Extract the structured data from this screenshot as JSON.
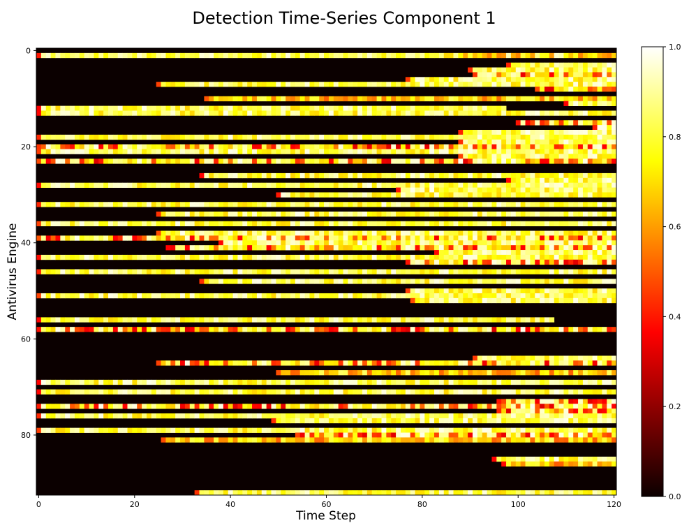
{
  "chart_data": {
    "type": "heatmap",
    "title": "Detection Time-Series Component 1",
    "xlabel": "Time Step",
    "ylabel": "Antivirus Engine",
    "x_range": [
      0,
      120
    ],
    "y_range": [
      0,
      92
    ],
    "y_inverted": true,
    "x_ticks": [
      0,
      20,
      40,
      60,
      80,
      100,
      120
    ],
    "y_ticks": [
      0,
      20,
      40,
      60,
      80
    ],
    "colormap": "hot",
    "colorbar": {
      "range": [
        0,
        1
      ],
      "ticks": [
        "0.0",
        "0.2",
        "0.4",
        "0.6",
        "0.8",
        "1.0"
      ]
    },
    "n_engines": 93,
    "n_steps": 121,
    "rows": [
      {
        "engine": 1,
        "start": 0,
        "end": 120,
        "mode": "bright-to-mid"
      },
      {
        "engine": 3,
        "start": 98,
        "end": 120,
        "mode": "bright"
      },
      {
        "engine": 4,
        "start": 90,
        "end": 120,
        "mode": "bright"
      },
      {
        "engine": 5,
        "start": 91,
        "end": 120,
        "mode": "mixed"
      },
      {
        "engine": 6,
        "start": 77,
        "end": 120,
        "mode": "bright"
      },
      {
        "engine": 7,
        "start": 25,
        "end": 120,
        "mode": "bright"
      },
      {
        "engine": 8,
        "start": 104,
        "end": 120,
        "mode": "mixed"
      },
      {
        "engine": 10,
        "start": 35,
        "end": 120,
        "mode": "mid"
      },
      {
        "engine": 11,
        "start": 110,
        "end": 120,
        "mode": "bright"
      },
      {
        "engine": 12,
        "start": 0,
        "end": 97,
        "mode": "bright"
      },
      {
        "engine": 13,
        "start": 0,
        "end": 120,
        "mode": "bright"
      },
      {
        "engine": 15,
        "start": 100,
        "end": 120,
        "mode": "mixed"
      },
      {
        "engine": 16,
        "start": 116,
        "end": 120,
        "mode": "bright"
      },
      {
        "engine": 17,
        "start": 88,
        "end": 120,
        "mode": "bright"
      },
      {
        "engine": 18,
        "start": 0,
        "end": 120,
        "mode": "bright"
      },
      {
        "engine": 19,
        "start": 88,
        "end": 120,
        "mode": "bright"
      },
      {
        "engine": 20,
        "start": 0,
        "end": 120,
        "mode": "mixed"
      },
      {
        "engine": 21,
        "start": 0,
        "end": 120,
        "mode": "bright"
      },
      {
        "engine": 22,
        "start": 88,
        "end": 120,
        "mode": "bright"
      },
      {
        "engine": 23,
        "start": 0,
        "end": 120,
        "mode": "mixed"
      },
      {
        "engine": 26,
        "start": 34,
        "end": 120,
        "mode": "bright"
      },
      {
        "engine": 27,
        "start": 98,
        "end": 120,
        "mode": "bright"
      },
      {
        "engine": 28,
        "start": 0,
        "end": 120,
        "mode": "bright"
      },
      {
        "engine": 29,
        "start": 75,
        "end": 120,
        "mode": "bright"
      },
      {
        "engine": 30,
        "start": 50,
        "end": 120,
        "mode": "bright"
      },
      {
        "engine": 32,
        "start": 0,
        "end": 120,
        "mode": "bright"
      },
      {
        "engine": 34,
        "start": 25,
        "end": 120,
        "mode": "bright"
      },
      {
        "engine": 36,
        "start": 0,
        "end": 120,
        "mode": "bright"
      },
      {
        "engine": 38,
        "start": 25,
        "end": 120,
        "mode": "bright"
      },
      {
        "engine": 39,
        "start": 0,
        "end": 120,
        "mode": "mixed"
      },
      {
        "engine": 40,
        "start": 38,
        "end": 120,
        "mode": "bright"
      },
      {
        "engine": 41,
        "start": 27,
        "end": 120,
        "mode": "mixed"
      },
      {
        "engine": 42,
        "start": 83,
        "end": 120,
        "mode": "bright"
      },
      {
        "engine": 43,
        "start": 0,
        "end": 120,
        "mode": "bright"
      },
      {
        "engine": 44,
        "start": 77,
        "end": 120,
        "mode": "mixed"
      },
      {
        "engine": 46,
        "start": 0,
        "end": 120,
        "mode": "bright"
      },
      {
        "engine": 48,
        "start": 34,
        "end": 120,
        "mode": "bright"
      },
      {
        "engine": 50,
        "start": 77,
        "end": 120,
        "mode": "bright"
      },
      {
        "engine": 51,
        "start": 0,
        "end": 120,
        "mode": "bright"
      },
      {
        "engine": 52,
        "start": 78,
        "end": 120,
        "mode": "bright"
      },
      {
        "engine": 56,
        "start": 0,
        "end": 107,
        "mode": "bright"
      },
      {
        "engine": 58,
        "start": 0,
        "end": 120,
        "mode": "mixed"
      },
      {
        "engine": 64,
        "start": 91,
        "end": 120,
        "mode": "bright"
      },
      {
        "engine": 65,
        "start": 25,
        "end": 120,
        "mode": "mixed"
      },
      {
        "engine": 67,
        "start": 50,
        "end": 120,
        "mode": "mid"
      },
      {
        "engine": 69,
        "start": 0,
        "end": 120,
        "mode": "bright"
      },
      {
        "engine": 71,
        "start": 0,
        "end": 120,
        "mode": "bright"
      },
      {
        "engine": 73,
        "start": 96,
        "end": 120,
        "mode": "mixed"
      },
      {
        "engine": 74,
        "start": 0,
        "end": 120,
        "mode": "mixed"
      },
      {
        "engine": 75,
        "start": 96,
        "end": 120,
        "mode": "mixed"
      },
      {
        "engine": 76,
        "start": 0,
        "end": 120,
        "mode": "bright"
      },
      {
        "engine": 77,
        "start": 49,
        "end": 120,
        "mode": "bright"
      },
      {
        "engine": 79,
        "start": 0,
        "end": 120,
        "mode": "bright"
      },
      {
        "engine": 80,
        "start": 54,
        "end": 120,
        "mode": "mixed"
      },
      {
        "engine": 81,
        "start": 26,
        "end": 120,
        "mode": "mid"
      },
      {
        "engine": 85,
        "start": 95,
        "end": 120,
        "mode": "bright"
      },
      {
        "engine": 86,
        "start": 97,
        "end": 120,
        "mode": "mid"
      },
      {
        "engine": 92,
        "start": 33,
        "end": 120,
        "mode": "bright"
      }
    ]
  }
}
